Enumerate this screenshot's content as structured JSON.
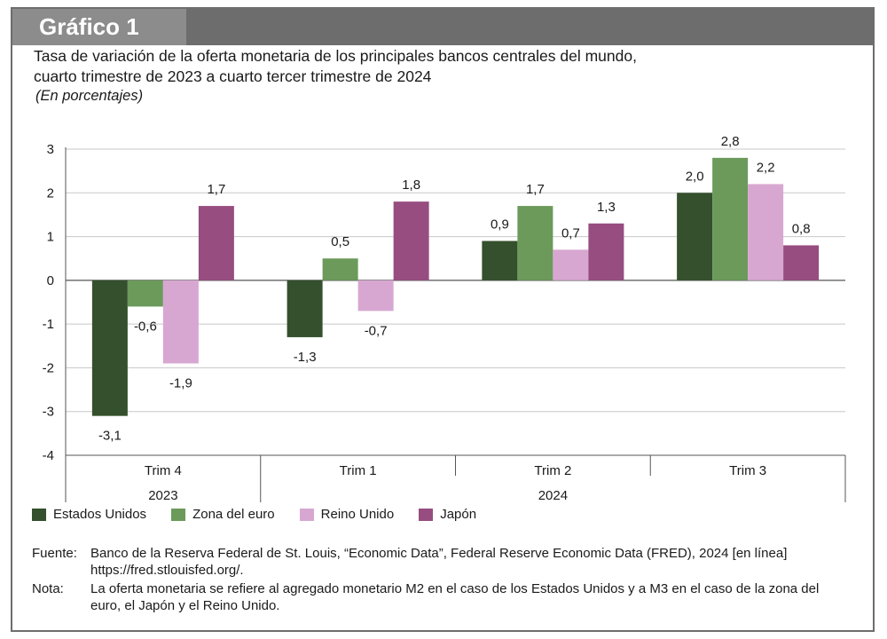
{
  "header": {
    "tab_label": "Gráfico 1"
  },
  "title_lines": [
    "Tasa de variación de la oferta monetaria de los principales bancos centrales del mundo,",
    "cuarto trimestre de 2023 a cuarto tercer trimestre de 2024"
  ],
  "subtitle": "(En porcentajes)",
  "colors": {
    "Estados Unidos": "#34502c",
    "Zona del euro": "#6b9a5a",
    "Reino Unido": "#d7a7d1",
    "Japón": "#974d7f",
    "grid": "#c8c8c8",
    "axis": "#555555"
  },
  "chart_data": {
    "type": "bar",
    "categories": [
      "Trim 4",
      "Trim 1",
      "Trim 2",
      "Trim 3"
    ],
    "year_groups": [
      {
        "label": "2023",
        "categories": [
          "Trim 4"
        ]
      },
      {
        "label": "2024",
        "categories": [
          "Trim 1",
          "Trim 2",
          "Trim 3"
        ]
      }
    ],
    "series": [
      {
        "name": "Estados Unidos",
        "values": [
          -3.1,
          -1.3,
          0.9,
          2.0
        ],
        "labels": [
          "-3,1",
          "-1,3",
          "0,9",
          "2,0"
        ]
      },
      {
        "name": "Zona del euro",
        "values": [
          -0.6,
          0.5,
          1.7,
          2.8
        ],
        "labels": [
          "-0,6",
          "0,5",
          "1,7",
          "2,8"
        ]
      },
      {
        "name": "Reino Unido",
        "values": [
          -1.9,
          -0.7,
          0.7,
          2.2
        ],
        "labels": [
          "-1,9",
          "-0,7",
          "0,7",
          "2,2"
        ]
      },
      {
        "name": "Japón",
        "values": [
          1.7,
          1.8,
          1.3,
          0.8
        ],
        "labels": [
          "1,7",
          "1,8",
          "1,3",
          "0,8"
        ]
      }
    ],
    "ylim": [
      -4,
      3
    ],
    "yticks": [
      3,
      2,
      1,
      0,
      -1,
      -2,
      -3,
      -4
    ],
    "ytick_labels": [
      "3",
      "2",
      "1",
      "0",
      "-1",
      "-2",
      "-3",
      "-4"
    ],
    "grid": true,
    "legend_position": "bottom-left"
  },
  "notes": [
    {
      "label": "Fuente:",
      "text": "Banco de la Reserva Federal de St. Louis, “Economic Data”, Federal Reserve Economic Data (FRED), 2024 [en línea] https://fred.stlouisfed.org/."
    },
    {
      "label": "Nota:",
      "text": "La oferta monetaria se refiere al agregado monetario M2 en el caso de los Estados Unidos y a M3 en el caso de la zona del euro, el Japón y el Reino Unido."
    }
  ]
}
